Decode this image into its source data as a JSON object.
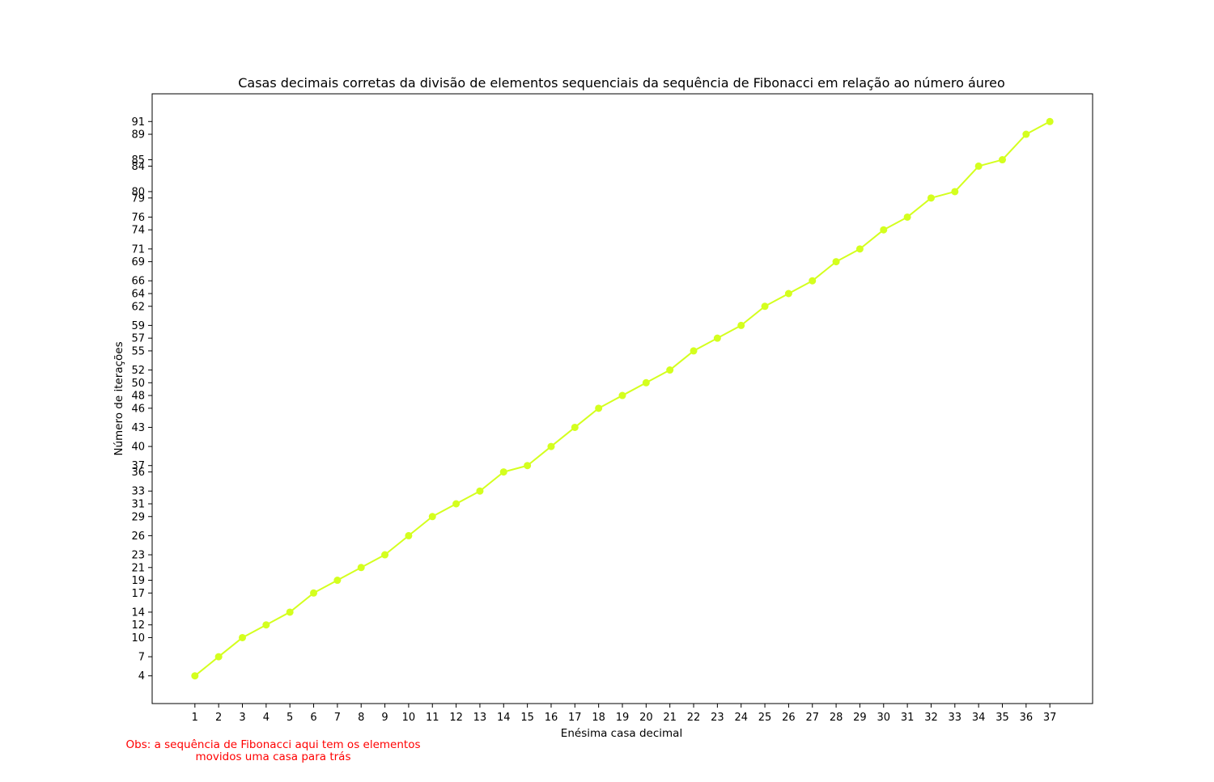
{
  "chart_data": {
    "type": "line",
    "title": "Casas decimais corretas da divisão de elementos sequenciais da sequência de Fibonacci em relação ao número áureo",
    "xlabel": "Enésima casa decimal",
    "ylabel": "Número de iterações",
    "x": [
      1,
      2,
      3,
      4,
      5,
      6,
      7,
      8,
      9,
      10,
      11,
      12,
      13,
      14,
      15,
      16,
      17,
      18,
      19,
      20,
      21,
      22,
      23,
      24,
      25,
      26,
      27,
      28,
      29,
      30,
      31,
      32,
      33,
      34,
      35,
      36,
      37
    ],
    "series": [
      {
        "values": [
          4,
          7,
          10,
          12,
          14,
          17,
          19,
          21,
          23,
          26,
          29,
          31,
          33,
          36,
          37,
          40,
          43,
          46,
          48,
          50,
          52,
          55,
          57,
          59,
          62,
          64,
          66,
          69,
          71,
          74,
          76,
          79,
          80,
          84,
          85,
          89,
          91
        ]
      }
    ],
    "xticks": [
      1,
      2,
      3,
      4,
      5,
      6,
      7,
      8,
      9,
      10,
      11,
      12,
      13,
      14,
      15,
      16,
      17,
      18,
      19,
      20,
      21,
      22,
      23,
      24,
      25,
      26,
      27,
      28,
      29,
      30,
      31,
      32,
      33,
      34,
      35,
      36,
      37
    ],
    "yticks": [
      4,
      7,
      10,
      12,
      14,
      17,
      19,
      21,
      23,
      26,
      29,
      31,
      33,
      36,
      37,
      40,
      43,
      46,
      48,
      50,
      52,
      55,
      57,
      59,
      62,
      64,
      66,
      69,
      71,
      74,
      76,
      79,
      80,
      84,
      85,
      89,
      91
    ],
    "xlim": [
      -0.8,
      38.8
    ],
    "ylim": [
      -0.35,
      95.35
    ],
    "grid": false,
    "line_color": "#d4ff1e",
    "note_color": "#ff0000"
  },
  "note": {
    "line1": "Obs: a sequência de Fibonacci aqui tem os elementos",
    "line2": "movidos uma casa para trás"
  }
}
